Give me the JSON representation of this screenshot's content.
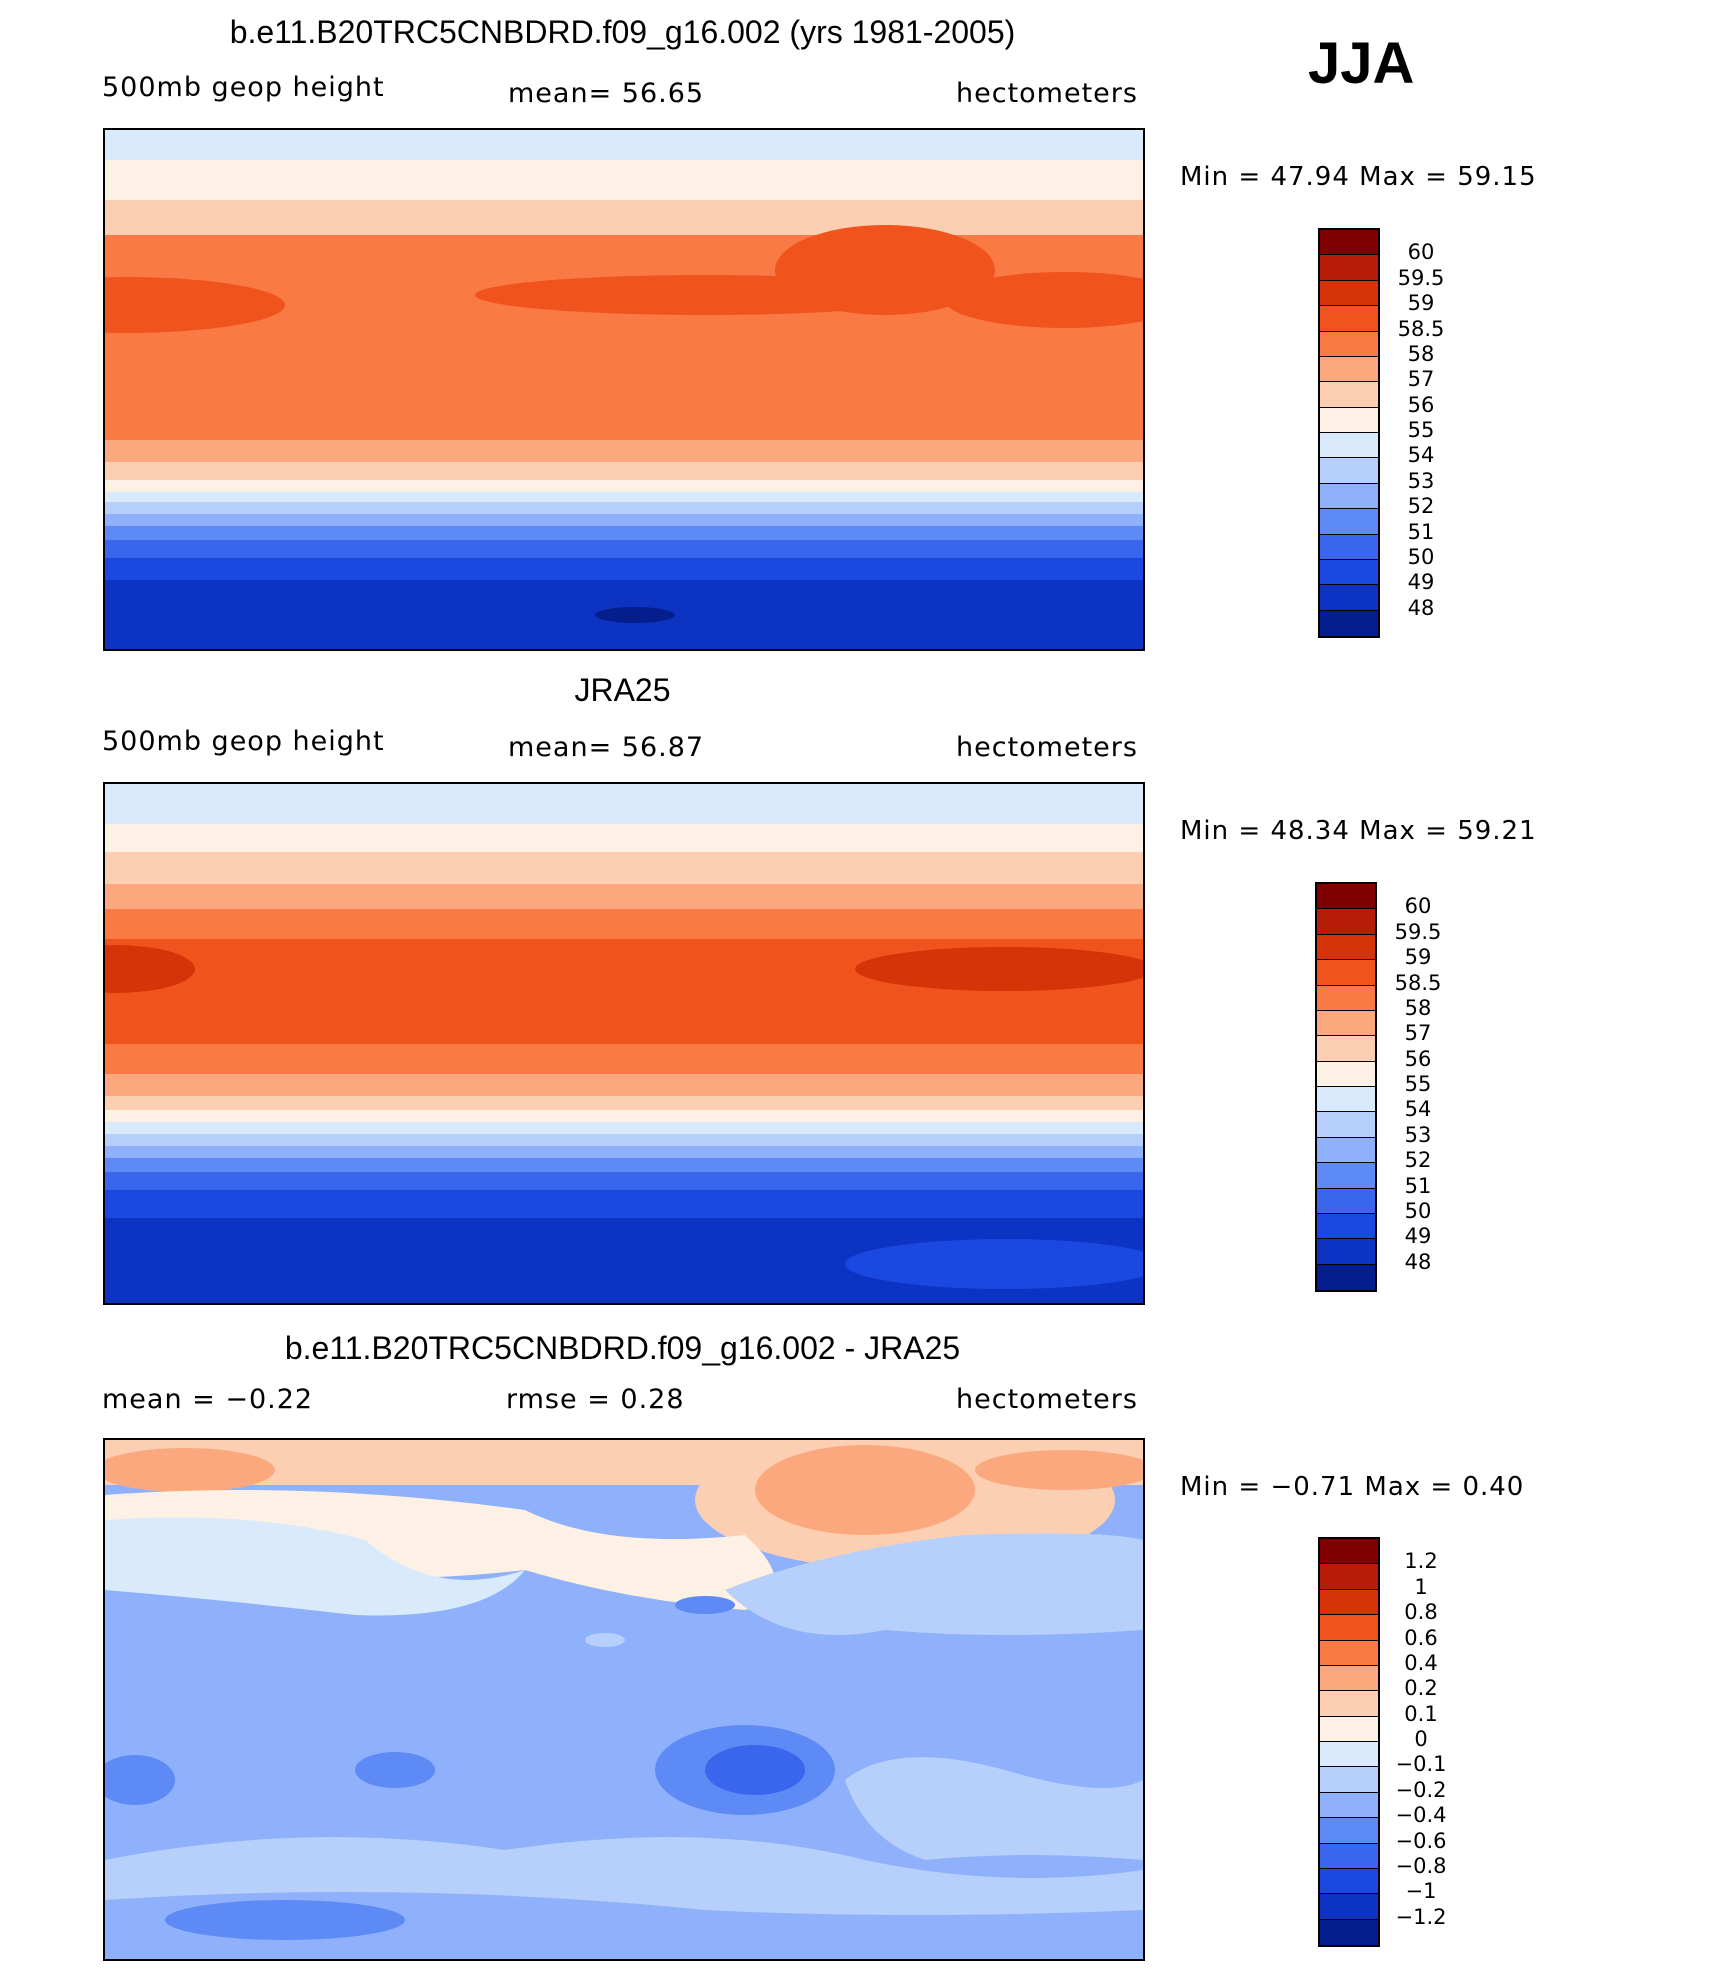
{
  "season": "JJA",
  "panels": [
    {
      "title": "b.e11.B20TRC5CNBDRD.f09_g16.002 (yrs 1981-2005)",
      "left_label": "500mb  geop  height",
      "center_label": "mean=   56.65",
      "right_label": "hectometers",
      "minmax": "Min  =    47.94  Max  =    59.15"
    },
    {
      "title": "JRA25",
      "left_label": "500mb  geop  height",
      "center_label": "mean=   56.87",
      "right_label": "hectometers",
      "minmax": "Min  =    48.34  Max  =    59.21"
    },
    {
      "title": "b.e11.B20TRC5CNBDRD.f09_g16.002 - JRA25",
      "left_label": "mean  =    −0.22",
      "center_label": "rmse  =     0.28",
      "right_label": "hectometers",
      "minmax": "Min  =    −0.71  Max  =      0.40"
    }
  ],
  "colorbar_height": {
    "levels": [
      "60",
      "59.5",
      "59",
      "58.5",
      "58",
      "57",
      "56",
      "55",
      "54",
      "53",
      "52",
      "51",
      "50",
      "49",
      "48"
    ],
    "colors": [
      "#800000",
      "#b51d08",
      "#d63308",
      "#f0531c",
      "#fa7a45",
      "#fca87e",
      "#fdcfb2",
      "#fdf0e4",
      "#d8eafc",
      "#b6d0fb",
      "#8fb0fa",
      "#5e8af5",
      "#3a66ee",
      "#1a48e0",
      "#0c33c2",
      "#051e8e"
    ]
  },
  "colorbar_diff": {
    "levels": [
      "1.2",
      "1",
      "0.8",
      "0.6",
      "0.4",
      "0.2",
      "0.1",
      "0",
      "−0.1",
      "−0.2",
      "−0.4",
      "−0.6",
      "−0.8",
      "−1",
      "−1.2"
    ],
    "colors": [
      "#800000",
      "#b51d08",
      "#d63308",
      "#f0531c",
      "#fa7a45",
      "#fca87e",
      "#fdcfb2",
      "#fdf0e4",
      "#d8eafc",
      "#b6d0fb",
      "#8fb0fa",
      "#5e8af5",
      "#3a66ee",
      "#1a48e0",
      "#0c33c2",
      "#051e8e"
    ]
  }
}
